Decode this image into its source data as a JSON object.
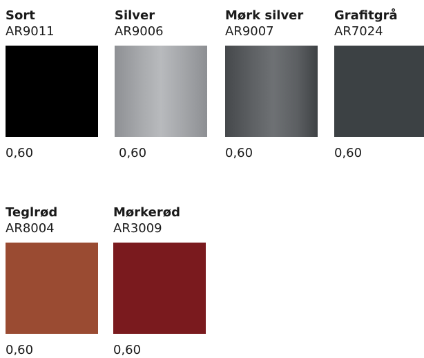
{
  "swatches": [
    {
      "name": "Sort",
      "code": "AR9011",
      "thickness": "0,60",
      "color": "#000000"
    },
    {
      "name": "Silver",
      "code": "AR9006",
      "thickness": "0,60",
      "color": "#a9abae"
    },
    {
      "name": "Mørk silver",
      "code": "AR9007",
      "thickness": "0,60",
      "color": "#5e6164"
    },
    {
      "name": "Grafitgrå",
      "code": "AR7024",
      "thickness": "0,60",
      "color": "#3c4144"
    },
    {
      "name": "Teglrød",
      "code": "AR8004",
      "thickness": "0,60",
      "color": "#9a4b32"
    },
    {
      "name": "Mørkerød",
      "code": "AR3009",
      "thickness": "0,60",
      "color": "#7a1a1e"
    }
  ]
}
